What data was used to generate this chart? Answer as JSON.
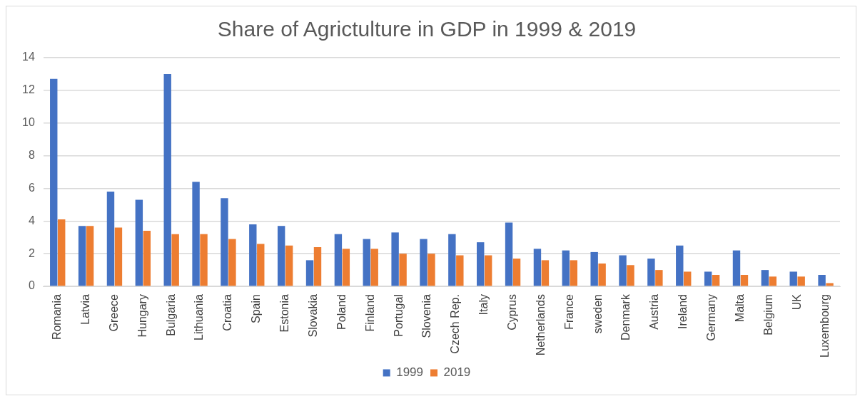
{
  "chart_data": {
    "type": "bar",
    "title": "Share of Agrictulture in GDP in 1999 & 2019",
    "categories": [
      "Romania",
      "Latvia",
      "Greece",
      "Hungary",
      "Bulgaria",
      "Lithuania",
      "Croatia",
      "Spain",
      "Estonia",
      "Slovakia",
      "Poland",
      "Finland",
      "Portugal",
      "Slovenia",
      "Czech Rep.",
      "Italy",
      "Cyprus",
      "Netherlands",
      "France",
      "sweden",
      "Denmark",
      "Austria",
      "Ireland",
      "Germany",
      "Malta",
      "Belgium",
      "UK",
      "Luxembourg"
    ],
    "series": [
      {
        "name": "1999",
        "color": "#4472c4",
        "values": [
          12.7,
          3.7,
          5.8,
          5.3,
          13.0,
          6.4,
          5.4,
          3.8,
          3.7,
          1.6,
          3.2,
          2.9,
          3.3,
          2.9,
          3.2,
          2.7,
          3.9,
          2.3,
          2.2,
          2.1,
          1.9,
          1.7,
          2.5,
          0.9,
          2.2,
          1.0,
          0.9,
          0.7
        ]
      },
      {
        "name": "2019",
        "color": "#ed7d31",
        "values": [
          4.1,
          3.7,
          3.6,
          3.4,
          3.2,
          3.2,
          2.9,
          2.6,
          2.5,
          2.4,
          2.3,
          2.3,
          2.0,
          2.0,
          1.9,
          1.9,
          1.7,
          1.6,
          1.6,
          1.4,
          1.3,
          1.0,
          0.9,
          0.7,
          0.7,
          0.6,
          0.6,
          0.2
        ]
      }
    ],
    "ylim": [
      0,
      14
    ],
    "yticks": [
      0,
      2,
      4,
      6,
      8,
      10,
      12,
      14
    ],
    "grid": "y",
    "legend": "bottom"
  }
}
